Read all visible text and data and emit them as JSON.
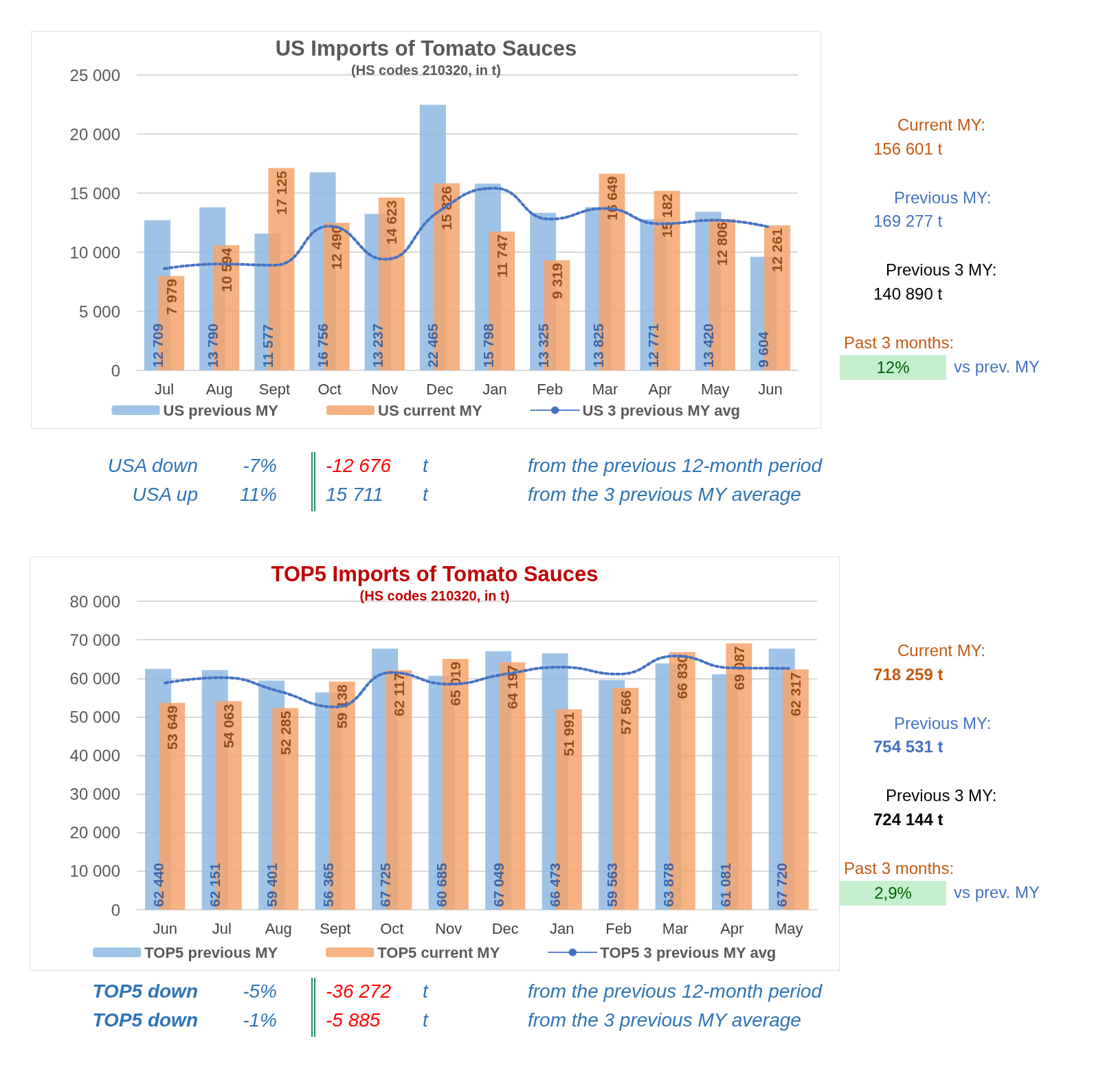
{
  "chart_data": [
    {
      "type": "bar",
      "title": "US Imports of Tomato Sauces",
      "subtitle": "(HS codes 210320, in t)",
      "categories": [
        "Jul",
        "Aug",
        "Sept",
        "Oct",
        "Nov",
        "Dec",
        "Jan",
        "Feb",
        "Mar",
        "Apr",
        "May",
        "Jun"
      ],
      "series": [
        {
          "name": "US previous MY",
          "color": "#8db8e3",
          "values": [
            12709,
            13790,
            11577,
            16756,
            13237,
            22465,
            15798,
            13325,
            13825,
            12771,
            13420,
            9604
          ],
          "value_labels": [
            "12 709",
            "13 790",
            "11 577",
            "16 756",
            "13 237",
            "22 465",
            "15 798",
            "13 325",
            "13 825",
            "12 771",
            "13 420",
            "9 604"
          ]
        },
        {
          "name": "US current MY",
          "color": "#f4a46c",
          "values": [
            7979,
            10594,
            17125,
            12490,
            14623,
            15826,
            11747,
            9319,
            16649,
            15182,
            12806,
            12261
          ],
          "value_labels": [
            "7 979",
            "10 594",
            "17 125",
            "12 490",
            "14 623",
            "15 826",
            "11 747",
            "9 319",
            "16 649",
            "15 182",
            "12 806",
            "12 261"
          ]
        },
        {
          "name": "US 3 previous MY avg",
          "type": "line",
          "color": "#4472c4",
          "line_style": "dotted",
          "values": [
            8600,
            9000,
            8900,
            12200,
            9400,
            13500,
            15400,
            12800,
            13700,
            12400,
            12700,
            12100
          ]
        }
      ],
      "ylim": [
        0,
        25000
      ],
      "yticks": [
        0,
        5000,
        10000,
        15000,
        20000,
        25000
      ],
      "grid": "y",
      "legend": "bottom",
      "annotations": [
        "Current MY:",
        "156 601 t",
        "Previous MY:",
        "169 277 t",
        "Previous 3 MY:",
        "140 890 t",
        "Past 3 months:",
        "12%",
        "vs prev. MY",
        "USA down",
        "-7%",
        "-12 676",
        "t",
        "from the previous 12-month period",
        "USA up",
        "11%",
        "15 711",
        "t",
        "from the 3 previous MY average"
      ]
    },
    {
      "type": "bar",
      "title": "TOP5 Imports of Tomato Sauces",
      "subtitle": "(HS codes 210320, in t)",
      "categories": [
        "Jun",
        "Jul",
        "Aug",
        "Sept",
        "Oct",
        "Nov",
        "Dec",
        "Jan",
        "Feb",
        "Mar",
        "Apr",
        "May"
      ],
      "series": [
        {
          "name": "TOP5 previous MY",
          "color": "#8db8e3",
          "values": [
            62440,
            62151,
            59401,
            56365,
            67725,
            60685,
            67049,
            66473,
            59563,
            63878,
            61081,
            67720
          ],
          "value_labels": [
            "62 440",
            "62 151",
            "59 401",
            "56 365",
            "67 725",
            "60 685",
            "67 049",
            "66 473",
            "59 563",
            "63 878",
            "61 081",
            "67 720"
          ]
        },
        {
          "name": "TOP5 current MY",
          "color": "#f4a46c",
          "values": [
            53649,
            54063,
            52285,
            59138,
            62117,
            65019,
            64197,
            51991,
            57566,
            66830,
            69087,
            62317
          ],
          "value_labels": [
            "53 649",
            "54 063",
            "52 285",
            "59 138",
            "62 117",
            "65 019",
            "64 197",
            "51 991",
            "57 566",
            "66 830",
            "69 087",
            "62 317"
          ]
        },
        {
          "name": "TOP5 3 previous MY avg",
          "type": "line",
          "color": "#4472c4",
          "line_style": "dotted",
          "values": [
            58800,
            60200,
            56700,
            52600,
            61500,
            58500,
            61100,
            62900,
            61100,
            65800,
            62700,
            62600
          ]
        }
      ],
      "ylim": [
        0,
        80000
      ],
      "yticks": [
        0,
        10000,
        20000,
        30000,
        40000,
        50000,
        60000,
        70000,
        80000
      ],
      "grid": "y",
      "legend": "bottom",
      "annotations": [
        "Current MY:",
        "718 259 t",
        "Previous MY:",
        "754 531 t",
        "Previous 3 MY:",
        "724 144 t",
        "Past 3 months:",
        "2,9%",
        "vs prev. MY",
        "TOP5 down",
        "-5%",
        "-36 272",
        "t",
        "from the previous 12-month period",
        "TOP5 down",
        "-1%",
        "-5 885",
        "t",
        "from the 3 previous MY average"
      ]
    }
  ]
}
